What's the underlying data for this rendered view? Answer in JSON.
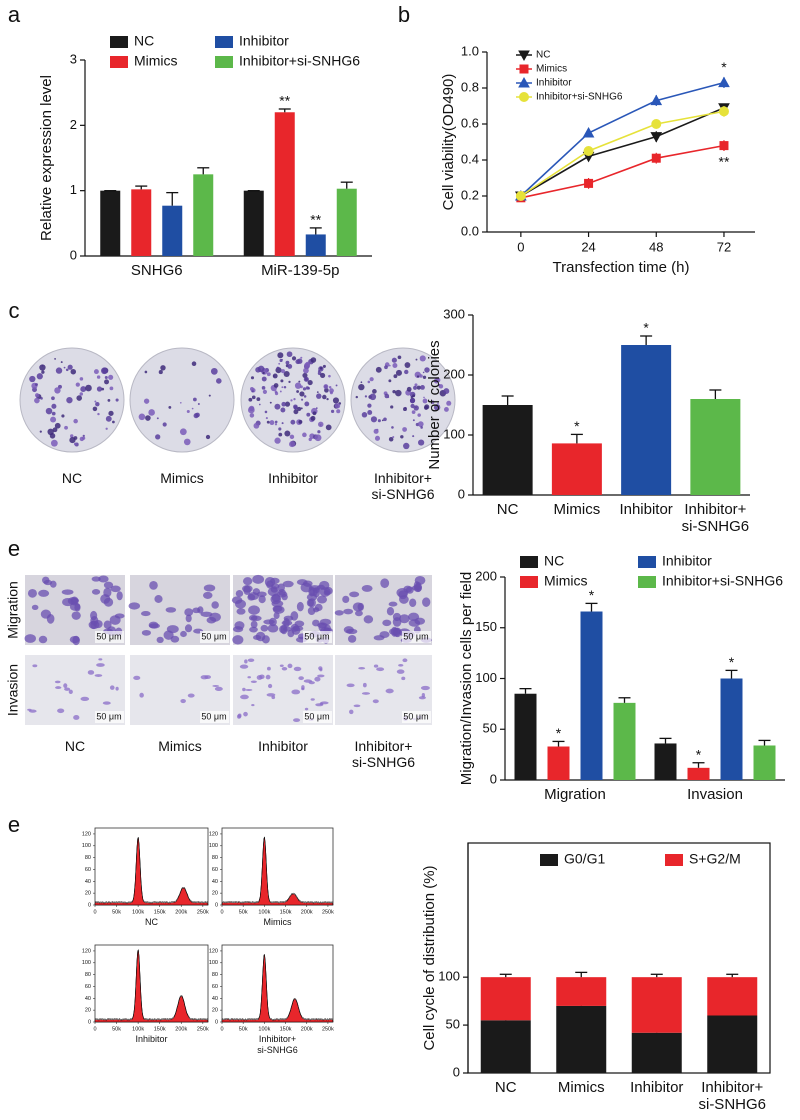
{
  "panel_labels": [
    "a",
    "b",
    "c",
    "e",
    "e"
  ],
  "colony_assay": {
    "captions": [
      "NC",
      "Mimics",
      "Inhibitor",
      "Inhibitor+\nsi-SNHG6"
    ]
  },
  "transwell": {
    "rows": [
      "Migration",
      "Invasion"
    ],
    "scale_bar": "50 μm",
    "captions": [
      "NC",
      "Mimics",
      "Inhibitor",
      "Inhibitor+\nsi-SNHG6"
    ]
  },
  "flow": {
    "xticks": [
      0,
      {
        "value": 50000,
        "label": "50k"
      },
      {
        "value": 100000,
        "label": "100k"
      },
      {
        "value": 150000,
        "label": "150k"
      },
      {
        "value": 200000,
        "label": "200k"
      },
      {
        "value": 250000,
        "label": "250k"
      }
    ],
    "yticks": [
      0,
      20,
      40,
      60,
      80,
      100,
      120
    ],
    "captions": [
      "NC",
      "Mimics",
      "Inhibitor",
      "Inhibitor+\nsi-SNHG6"
    ]
  },
  "chart_data": [
    {
      "type": "bar",
      "ylabel": "Relative expression level",
      "categories": [
        "SNHG6",
        "MiR-139-5p"
      ],
      "ylim": [
        0,
        3
      ],
      "yticks": [
        0,
        1,
        2,
        3
      ],
      "series": [
        {
          "name": "NC",
          "color": "#1a1a1a",
          "values": [
            1,
            1
          ],
          "errors": [
            0,
            0
          ],
          "significance": [
            null,
            null
          ]
        },
        {
          "name": "Mimics",
          "color": "#e8262b",
          "values": [
            1.02,
            2.2
          ],
          "errors": [
            0.05,
            0.05
          ],
          "significance": [
            null,
            "**"
          ]
        },
        {
          "name": "Inhibitor",
          "color": "#1f4ea3",
          "values": [
            0.77,
            0.33
          ],
          "errors": [
            0.2,
            0.1
          ],
          "significance": [
            null,
            "**"
          ]
        },
        {
          "name": "Inhibitor+si-SNHG6",
          "color": "#5cb84a",
          "values": [
            1.25,
            1.03
          ],
          "errors": [
            0.1,
            0.1
          ],
          "significance": [
            null,
            null
          ]
        }
      ]
    },
    {
      "type": "line",
      "xlabel": "Transfection time (h)",
      "ylabel": "Cell viability(OD490)",
      "x": [
        0,
        24,
        48,
        72
      ],
      "xlim": [
        -12,
        83
      ],
      "xticks": [
        0,
        24,
        48,
        72
      ],
      "ylim": [
        0,
        1
      ],
      "yticks": [
        {
          "value": 0,
          "label": "0.0"
        },
        0.2,
        0.4,
        0.6,
        0.8,
        {
          "value": 1,
          "label": "1.0"
        }
      ],
      "series": [
        {
          "name": "NC",
          "color": "#1a1a1a",
          "marker": "triangle-down",
          "values": [
            0.2,
            0.42,
            0.53,
            0.69
          ],
          "errors": [
            0.02,
            0.02,
            0.03,
            0.02
          ],
          "significance": [
            null,
            null,
            null,
            null
          ]
        },
        {
          "name": "Mimics",
          "color": "#e8262b",
          "marker": "square",
          "values": [
            0.19,
            0.27,
            0.41,
            0.48
          ],
          "errors": [
            0.02,
            0.03,
            0.03,
            0.03
          ],
          "significance": [
            null,
            null,
            null,
            "**"
          ]
        },
        {
          "name": "Inhibitor",
          "color": "#2a57b8",
          "marker": "triangle-up",
          "values": [
            0.2,
            0.55,
            0.73,
            0.83
          ],
          "errors": [
            0.02,
            0.02,
            0.03,
            0.03
          ],
          "significance": [
            null,
            null,
            null,
            "*"
          ]
        },
        {
          "name": "Inhibitor+si-SNHG6",
          "color": "#e6e23a",
          "marker": "circle",
          "values": [
            0.2,
            0.45,
            0.6,
            0.67
          ],
          "errors": [
            0.02,
            0.02,
            0.02,
            0.03
          ],
          "significance": [
            null,
            null,
            null,
            null
          ]
        }
      ]
    },
    {
      "type": "bar",
      "ylabel": "Number of colonies",
      "categories": [
        "NC",
        "Mimics",
        "Inhibitor",
        "Inhibitor+\nsi-SNHG6"
      ],
      "ylim": [
        0,
        300
      ],
      "yticks": [
        0,
        100,
        200,
        300
      ],
      "values": [
        150,
        86,
        250,
        160
      ],
      "errors": [
        15,
        15,
        15,
        15
      ],
      "significance": [
        null,
        "*",
        "*",
        null
      ],
      "colors": [
        "#1a1a1a",
        "#e8262b",
        "#1f4ea3",
        "#5cb84a"
      ]
    },
    {
      "type": "bar",
      "ylabel": "Migration/Invasion cells per field",
      "categories": [
        "Migration",
        "Invasion"
      ],
      "ylim": [
        0,
        200
      ],
      "yticks": [
        0,
        50,
        100,
        150,
        200
      ],
      "series": [
        {
          "name": "NC",
          "color": "#1a1a1a",
          "values": [
            85,
            36
          ],
          "errors": [
            5,
            5
          ],
          "significance": [
            null,
            null
          ]
        },
        {
          "name": "Mimics",
          "color": "#e8262b",
          "values": [
            33,
            12
          ],
          "errors": [
            5,
            5
          ],
          "significance": [
            "*",
            "*"
          ]
        },
        {
          "name": "Inhibitor",
          "color": "#1f4ea3",
          "values": [
            166,
            100
          ],
          "errors": [
            8,
            8
          ],
          "significance": [
            "*",
            "*"
          ]
        },
        {
          "name": "Inhibitor+si-SNHG6",
          "color": "#5cb84a",
          "values": [
            76,
            34
          ],
          "errors": [
            5,
            5
          ],
          "significance": [
            null,
            null
          ]
        }
      ]
    },
    {
      "type": "stacked_bar",
      "ylabel": "Cell cycle of distribution (%)",
      "frame": true,
      "categories": [
        "NC",
        "Mimics",
        "Inhibitor",
        "Inhibitor+\nsi-SNHG6"
      ],
      "ylim": [
        0,
        240
      ],
      "yticks": [
        0,
        50,
        100
      ],
      "series": [
        {
          "name": "G0/G1",
          "color": "#1a1a1a",
          "values": [
            55,
            70,
            42,
            60
          ],
          "errors": [
            5,
            5,
            3,
            2
          ],
          "significance": [
            null,
            "*",
            "*",
            null
          ]
        },
        {
          "name": "S+G2/M",
          "color": "#e8262b",
          "values": [
            45,
            30,
            58,
            40
          ],
          "errors": [
            3,
            5,
            3,
            3
          ],
          "significance": [
            null,
            null,
            null,
            null
          ]
        }
      ]
    }
  ]
}
